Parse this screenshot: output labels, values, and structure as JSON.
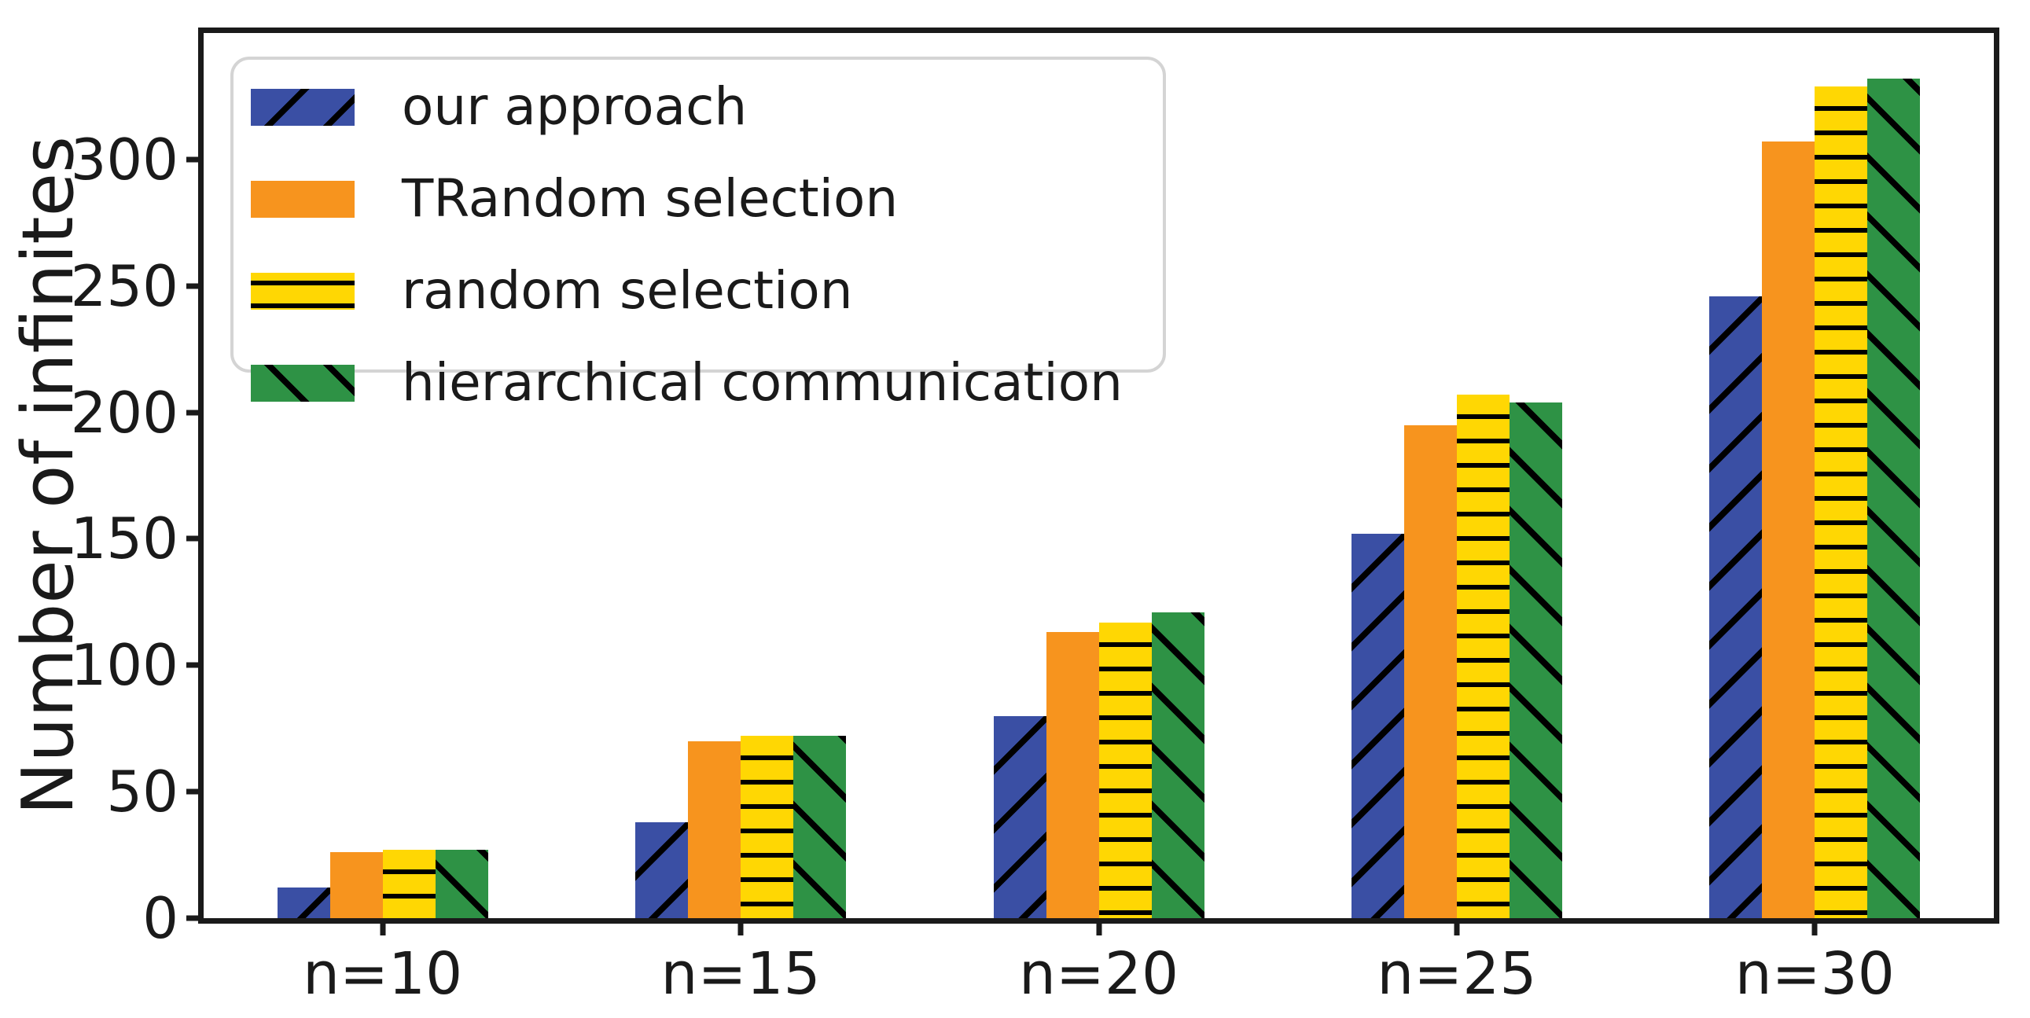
{
  "chart_data": {
    "type": "bar",
    "title": "",
    "xlabel": "",
    "ylabel": "Number of infinites",
    "categories": [
      "n=10",
      "n=15",
      "n=20",
      "n=25",
      "n=30"
    ],
    "series": [
      {
        "name": "our approach",
        "color": "#3A4FA4",
        "hatch": "/",
        "values": [
          12,
          38,
          80,
          152,
          246
        ]
      },
      {
        "name": "TRandom selection",
        "color": "#F7941E",
        "hatch": "",
        "values": [
          26,
          70,
          113,
          195,
          307
        ]
      },
      {
        "name": "random selection",
        "color": "#FFD703",
        "hatch": "-",
        "values": [
          27,
          72,
          117,
          207,
          329
        ]
      },
      {
        "name": "hierarchical communication",
        "color": "#2E9245",
        "hatch": "\\",
        "values": [
          27,
          72,
          121,
          204,
          332
        ]
      }
    ],
    "ylim": [
      0,
      350
    ],
    "yticks": [
      0,
      50,
      100,
      150,
      200,
      250,
      300
    ],
    "grid": false,
    "legend_position": "upper left",
    "axis_color": "#1a1a1a"
  }
}
